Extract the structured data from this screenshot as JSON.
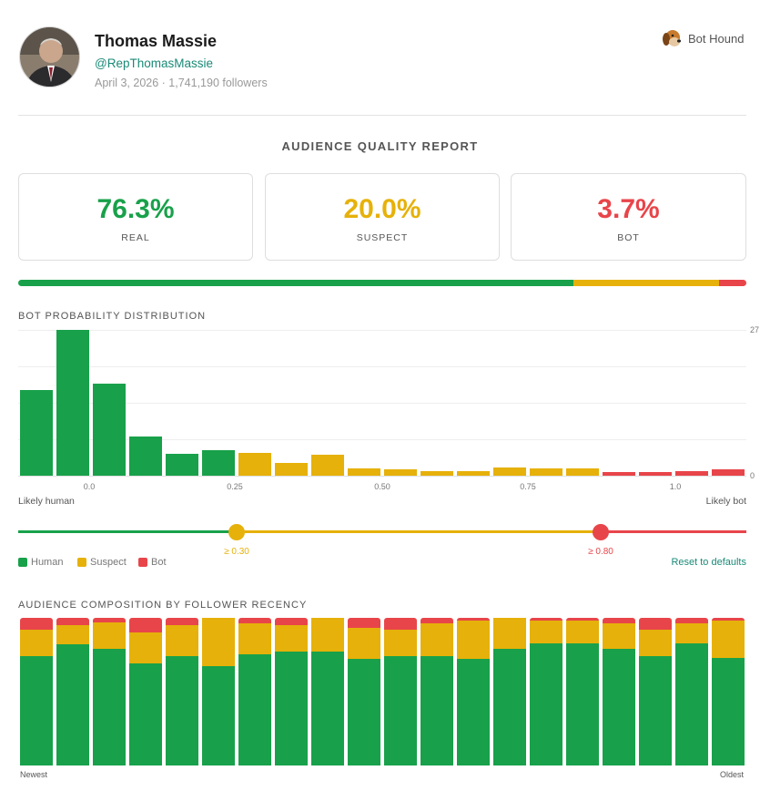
{
  "profile": {
    "name": "Thomas Massie",
    "handle": "@RepThomasMassie",
    "meta": "April 3, 2026 · 1,741,190 followers",
    "avatar_icon": "person-portrait-icon"
  },
  "brand": {
    "name": "Bot Hound",
    "icon": "dog-head-icon"
  },
  "colors": {
    "human": "#18a14a",
    "suspect": "#e6b10a",
    "bot": "#e8454a",
    "accent": "#1a8a77"
  },
  "report": {
    "title": "AUDIENCE QUALITY REPORT",
    "stats": [
      {
        "value": "76.3%",
        "label": "REAL"
      },
      {
        "value": "20.0%",
        "label": "SUSPECT"
      },
      {
        "value": "3.7%",
        "label": "BOT"
      }
    ],
    "quality_bar": {
      "real": 76.3,
      "suspect": 20.0,
      "bot": 3.7
    }
  },
  "distribution": {
    "title": "BOT PROBABILITY DISTRIBUTION",
    "y_max_label": "27",
    "y_min_label": "0",
    "left_label": "Likely human",
    "right_label": "Likely bot",
    "x_ticks": [
      "0.0",
      "0.25",
      "0.50",
      "0.75",
      "1.0"
    ]
  },
  "chart_data": [
    {
      "type": "bar",
      "title": "BOT PROBABILITY DISTRIBUTION",
      "xlabel": "",
      "ylabel": "",
      "ylim": [
        0,
        27
      ],
      "x_ticks": [
        0.0,
        0.25,
        0.5,
        0.75,
        1.0
      ],
      "values": [
        15.9,
        27,
        17.1,
        7.3,
        4.1,
        4.8,
        4.3,
        2.4,
        3.9,
        1.4,
        1.1,
        0.8,
        0.9,
        1.5,
        1.3,
        1.3,
        0.6,
        0.6,
        0.9,
        1.2
      ],
      "classes": [
        "human",
        "human",
        "human",
        "human",
        "human",
        "human",
        "suspect",
        "suspect",
        "suspect",
        "suspect",
        "suspect",
        "suspect",
        "suspect",
        "suspect",
        "suspect",
        "suspect",
        "bot",
        "bot",
        "bot",
        "bot"
      ]
    },
    {
      "type": "bar",
      "title": "AUDIENCE COMPOSITION BY FOLLOWER RECENCY",
      "stacked": true,
      "x_start_label": "Newest",
      "x_end_label": "Oldest",
      "ylim": [
        0,
        100
      ],
      "series": [
        {
          "name": "Human",
          "values": [
            74,
            82,
            79,
            69,
            74,
            67,
            75,
            77,
            77,
            72,
            74,
            74,
            72,
            79,
            83,
            83,
            79,
            74,
            83,
            73
          ]
        },
        {
          "name": "Suspect",
          "values": [
            18,
            13,
            18,
            21,
            21,
            33,
            21,
            18,
            23,
            21,
            18,
            22,
            26,
            21,
            15,
            15,
            17,
            18,
            13,
            25
          ]
        },
        {
          "name": "Bot",
          "values": [
            8,
            5,
            3,
            10,
            5,
            0,
            4,
            5,
            0,
            7,
            8,
            4,
            2,
            0,
            2,
            2,
            4,
            8,
            4,
            2
          ]
        }
      ]
    }
  ],
  "thresholds": {
    "suspect": {
      "value": 0.3,
      "label": "≥ 0.30"
    },
    "bot": {
      "value": 0.8,
      "label": "≥ 0.80"
    }
  },
  "legend": {
    "human": "Human",
    "suspect": "Suspect",
    "bot": "Bot"
  },
  "reset_label": "Reset to defaults",
  "composition": {
    "title": "AUDIENCE COMPOSITION BY FOLLOWER RECENCY",
    "left_label": "Newest",
    "right_label": "Oldest"
  }
}
